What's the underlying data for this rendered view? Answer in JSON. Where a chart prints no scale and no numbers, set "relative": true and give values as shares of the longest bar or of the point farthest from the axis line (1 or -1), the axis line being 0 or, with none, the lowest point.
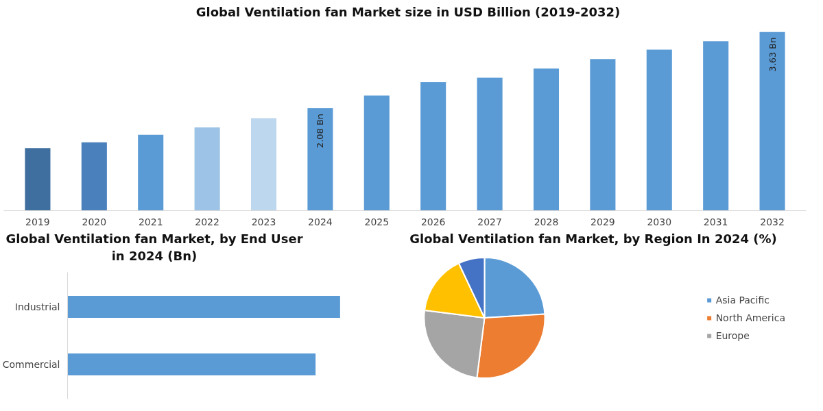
{
  "chart_data": [
    {
      "type": "bar",
      "title": "Global Ventilation fan Market size in USD Billion (2019-2032)",
      "categories": [
        "2019",
        "2020",
        "2021",
        "2022",
        "2023",
        "2024",
        "2025",
        "2026",
        "2027",
        "2028",
        "2029",
        "2030",
        "2031",
        "2032"
      ],
      "values": [
        1.27,
        1.39,
        1.54,
        1.69,
        1.88,
        2.08,
        2.34,
        2.61,
        2.7,
        2.89,
        3.08,
        3.27,
        3.44,
        3.63
      ],
      "value_labels": [
        null,
        null,
        null,
        null,
        null,
        "2.08 Bn",
        null,
        null,
        null,
        null,
        null,
        null,
        null,
        "3.63 Bn"
      ],
      "colors": [
        "#3f6f9f",
        "#4a80bb",
        "#5b9bd5",
        "#9dc3e6",
        "#bdd7ee",
        "#5b9bd5",
        "#5b9bd5",
        "#5b9bd5",
        "#5b9bd5",
        "#5b9bd5",
        "#5b9bd5",
        "#5b9bd5",
        "#5b9bd5",
        "#5b9bd5"
      ],
      "tick_labels": "x",
      "grid": false
    },
    {
      "type": "bar",
      "orientation": "horizontal",
      "relative": true,
      "title": "Global Ventilation fan Market, by End User  in 2024 (Bn)",
      "categories": [
        "Industrial",
        "Commercial"
      ],
      "values": [
        1,
        0.91
      ],
      "color": "#5b9bd5",
      "tick_labels": "y",
      "grid": false
    },
    {
      "type": "pie",
      "title": "Global Ventilation fan Market, by Region In 2024 (%)",
      "categories": [
        "Asia Pacific",
        "North America",
        "Europe",
        null,
        null
      ],
      "values": [
        24,
        28,
        25,
        16,
        7
      ],
      "colors": [
        "#5b9bd5",
        "#ed7d31",
        "#a5a5a5",
        "#ffc000",
        "#4472c4"
      ],
      "legend": "right"
    }
  ]
}
